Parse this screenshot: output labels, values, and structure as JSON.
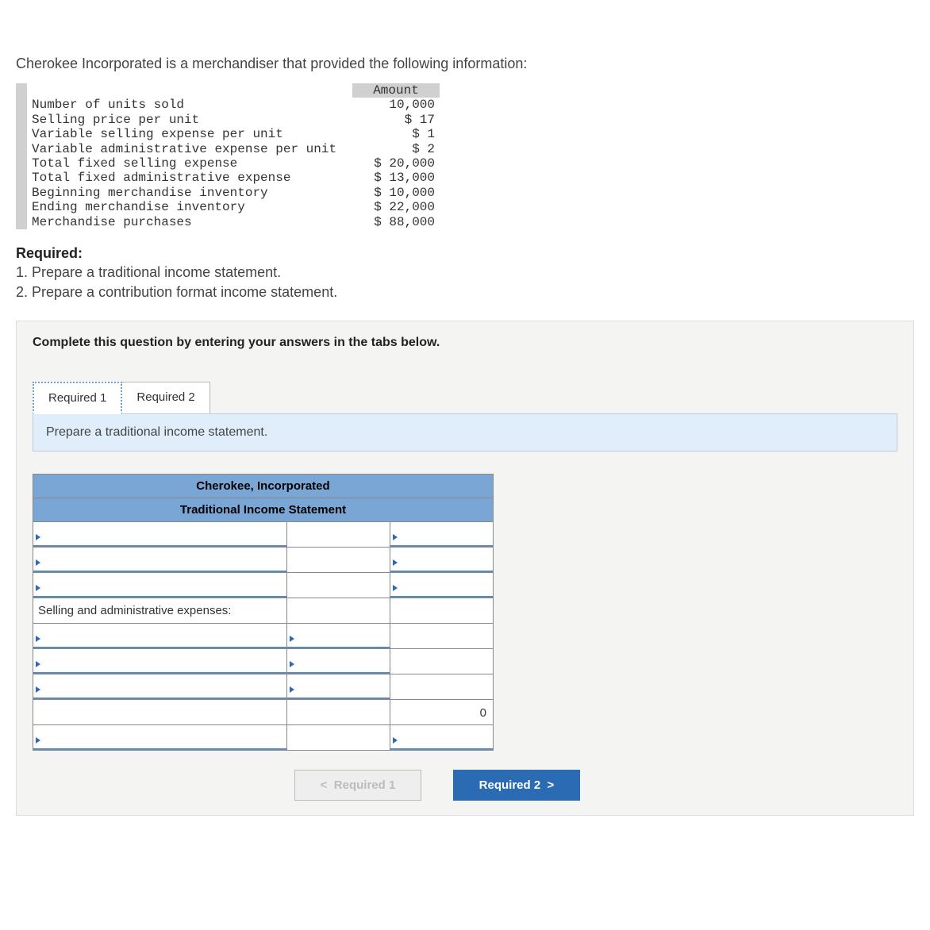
{
  "intro": "Cherokee Incorporated is a merchandiser that provided the following information:",
  "info_table": {
    "header": "Amount",
    "rows": [
      {
        "label": "Number of units sold",
        "amount": "10,000"
      },
      {
        "label": "Selling price per unit",
        "amount": "$ 17"
      },
      {
        "label": "Variable selling expense per unit",
        "amount": "$ 1"
      },
      {
        "label": "Variable administrative expense per unit",
        "amount": "$ 2"
      },
      {
        "label": "Total fixed selling expense",
        "amount": "$ 20,000"
      },
      {
        "label": "Total fixed administrative expense",
        "amount": "$ 13,000"
      },
      {
        "label": "Beginning merchandise inventory",
        "amount": "$ 10,000"
      },
      {
        "label": "Ending merchandise inventory",
        "amount": "$ 22,000"
      },
      {
        "label": "Merchandise purchases",
        "amount": "$ 88,000"
      }
    ]
  },
  "required": {
    "heading": "Required:",
    "items": [
      "1. Prepare a traditional income statement.",
      "2. Prepare a contribution format income statement."
    ]
  },
  "panel": {
    "instructions": "Complete this question by entering your answers in the tabs below.",
    "tabs": [
      "Required 1",
      "Required 2"
    ],
    "active_tab": 0,
    "sub_instruction": "Prepare a traditional income statement."
  },
  "worksheet": {
    "title1": "Cherokee, Incorporated",
    "title2": "Traditional Income Statement",
    "columns": {
      "c1_width": 320,
      "c2_width": 130,
      "c3_width": 130
    },
    "header_bg": "#7aa6d6",
    "underline_color": "#5b8bc4",
    "triangle_color": "#2a6bb3",
    "rows": [
      {
        "type": "input3",
        "c1": "",
        "c2": "",
        "c3": ""
      },
      {
        "type": "input3",
        "c1": "",
        "c2": "",
        "c3": ""
      },
      {
        "type": "input3",
        "c1": "",
        "c2": "",
        "c3": ""
      },
      {
        "type": "static_label",
        "c1": "Selling and administrative expenses:"
      },
      {
        "type": "input_c1c2",
        "c1": "",
        "c2": ""
      },
      {
        "type": "input_c1c2",
        "c1": "",
        "c2": ""
      },
      {
        "type": "input_c1c2",
        "c1": "",
        "c2": ""
      },
      {
        "type": "plain_c1c2_val_c3",
        "c1": "",
        "c2": "",
        "c3": "0"
      },
      {
        "type": "input_c1_c3_plain_c2",
        "c1": "",
        "c2": "",
        "c3": ""
      }
    ]
  },
  "nav": {
    "prev": "Required 1",
    "next": "Required 2"
  }
}
